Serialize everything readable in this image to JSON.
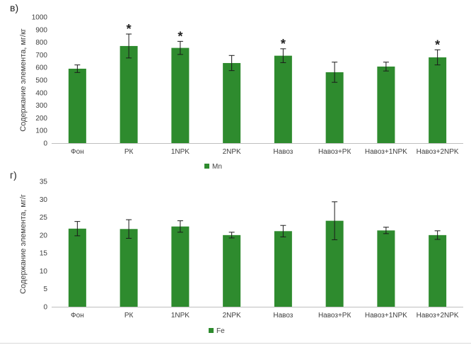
{
  "chart_data": [
    {
      "type": "bar",
      "panel_label": "в)",
      "ylabel": "Содержание элемента, мг/кг",
      "categories": [
        "Фон",
        "РК",
        "1NPK",
        "2NPK",
        "Навоз",
        "Навоз+РК",
        "Навоз+1NPK",
        "Навоз+2NPK"
      ],
      "series": [
        {
          "name": "Mn",
          "color": "#2e8b2e",
          "values": [
            590,
            770,
            755,
            635,
            693,
            562,
            607,
            680
          ],
          "errors": [
            30,
            95,
            52,
            60,
            55,
            80,
            35,
            60
          ],
          "significant": [
            false,
            true,
            true,
            false,
            true,
            false,
            false,
            true
          ]
        }
      ],
      "significance_marker": "*",
      "ylim": [
        0,
        1000
      ],
      "yticks": [
        0,
        100,
        200,
        300,
        400,
        500,
        600,
        700,
        800,
        900,
        1000
      ],
      "grid": false,
      "legend": "bottom"
    },
    {
      "type": "bar",
      "panel_label": "г)",
      "ylabel": "Содержание элемента, мг/г",
      "categories": [
        "Фон",
        "РК",
        "1NPK",
        "2NPK",
        "Навоз",
        "Навоз+РК",
        "Навоз+1NPK",
        "Навоз+2NPK"
      ],
      "series": [
        {
          "name": "Fe",
          "color": "#2e8b2e",
          "values": [
            21.8,
            21.7,
            22.4,
            20.0,
            21.1,
            24.0,
            21.3,
            20.0
          ],
          "errors": [
            2.0,
            2.6,
            1.6,
            0.8,
            1.6,
            5.3,
            0.9,
            1.2
          ]
        }
      ],
      "ylim": [
        0,
        35
      ],
      "yticks": [
        0,
        5,
        10,
        15,
        20,
        25,
        30,
        35
      ],
      "grid": false,
      "legend": "bottom"
    }
  ]
}
